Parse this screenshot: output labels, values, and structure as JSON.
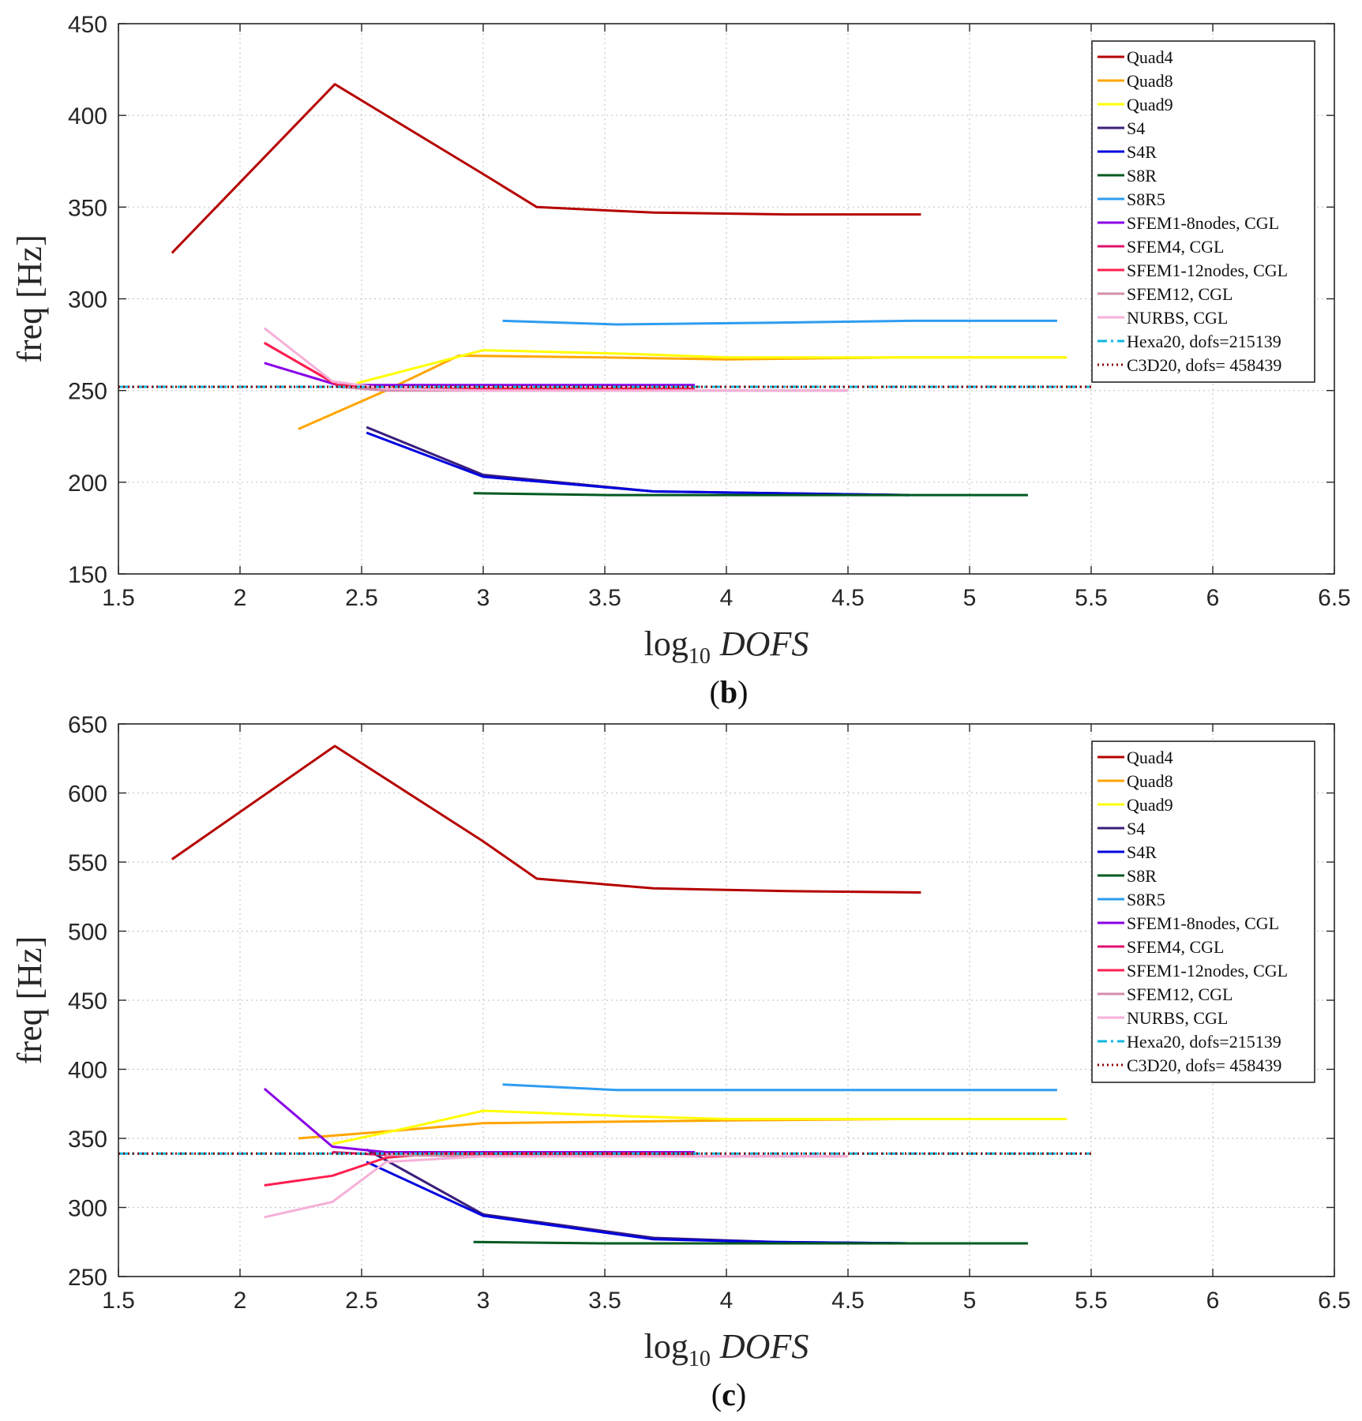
{
  "chart_data": [
    {
      "type": "line",
      "caption": "b",
      "xlabel": "log10 DOFS",
      "ylabel": "freq [Hz]",
      "xlim": [
        1.5,
        6.5
      ],
      "ylim": [
        150,
        450
      ],
      "xticks": [
        1.5,
        2,
        2.5,
        3,
        3.5,
        4,
        4.5,
        5,
        5.5,
        6,
        6.5
      ],
      "yticks": [
        150,
        200,
        250,
        300,
        350,
        400,
        450
      ],
      "xtick_labels": [
        "1.5",
        "2",
        "2.5",
        "3",
        "3.5",
        "4",
        "4.5",
        "5",
        "5.5",
        "6",
        "6.5"
      ],
      "ytick_labels": [
        "150",
        "200",
        "250",
        "300",
        "350",
        "400",
        "450"
      ],
      "grid": true,
      "legend_position": "top-right",
      "series": [
        {
          "name": "Quad4",
          "color": "#b50000",
          "dash": "solid",
          "x": [
            1.72,
            2.39,
            3.0,
            3.22,
            3.7,
            4.25,
            4.8
          ],
          "y": [
            325,
            417,
            368,
            350,
            347,
            346,
            346
          ]
        },
        {
          "name": "Quad8",
          "color": "#ffa500",
          "dash": "solid",
          "x": [
            2.24,
            2.6,
            2.9,
            3.5,
            4.0,
            4.7,
            5.4
          ],
          "y": [
            229,
            250,
            269,
            268,
            267,
            268,
            268
          ]
        },
        {
          "name": "Quad9",
          "color": "#ffff00",
          "dash": "solid",
          "x": [
            2.48,
            2.8,
            3.0,
            3.6,
            4.0,
            4.8,
            5.4
          ],
          "y": [
            254,
            265,
            272,
            270,
            268,
            268,
            268
          ]
        },
        {
          "name": "S4",
          "color": "#3a1e7a",
          "dash": "solid",
          "x": [
            2.52,
            3.0,
            3.7,
            4.2,
            4.75
          ],
          "y": [
            230,
            204,
            195,
            194,
            193
          ]
        },
        {
          "name": "S4R",
          "color": "#0000e0",
          "dash": "solid",
          "x": [
            2.52,
            3.0,
            3.7,
            4.2,
            4.75
          ],
          "y": [
            227,
            203,
            195,
            194,
            193
          ]
        },
        {
          "name": "S8R",
          "color": "#005a20",
          "dash": "solid",
          "x": [
            2.96,
            3.5,
            4.1,
            4.7,
            5.24
          ],
          "y": [
            194,
            193,
            193,
            193,
            193
          ]
        },
        {
          "name": "S8R5",
          "color": "#2e9cf0",
          "dash": "solid",
          "x": [
            3.08,
            3.55,
            4.2,
            4.75,
            5.36
          ],
          "y": [
            288,
            286,
            287,
            288,
            288
          ]
        },
        {
          "name": "SFEM1-8nodes, CGL",
          "color": "#8a00e6",
          "dash": "solid",
          "x": [
            2.1,
            2.4,
            2.55,
            3.0,
            3.87
          ],
          "y": [
            265,
            253,
            253,
            253,
            253
          ]
        },
        {
          "name": "SFEM4, CGL",
          "color": "#e0106e",
          "dash": "solid",
          "x": [
            2.1,
            2.4,
            2.6,
            3.0,
            3.5,
            3.87
          ],
          "y": [
            276,
            253,
            251,
            251,
            251,
            251
          ]
        },
        {
          "name": "SFEM1-12nodes, CGL",
          "color": "#ff1f4f",
          "dash": "solid",
          "x": [
            2.1,
            2.4,
            2.6,
            3.0,
            3.87
          ],
          "y": [
            276,
            253,
            251,
            251,
            251
          ]
        },
        {
          "name": "SFEM12, CGL",
          "color": "#d58cab",
          "dash": "solid",
          "x": [
            2.4,
            2.6,
            3.0,
            3.5,
            4.5
          ],
          "y": [
            252,
            250,
            250,
            250,
            250
          ]
        },
        {
          "name": "NURBS, CGL",
          "color": "#f5b0d8",
          "dash": "solid",
          "x": [
            2.1,
            2.38,
            2.6,
            3.0,
            3.5,
            4.5
          ],
          "y": [
            284,
            255,
            251,
            250,
            250,
            250
          ]
        },
        {
          "name": "Hexa20, dofs=215139",
          "color": "#12b6e0",
          "dash": "dashdot",
          "x": [
            1.5,
            5.5
          ],
          "y": [
            252,
            252
          ]
        },
        {
          "name": "C3D20, dofs= 458439",
          "color": "#8b0000",
          "dash": "dotted",
          "x": [
            1.5,
            5.5
          ],
          "y": [
            252,
            252
          ]
        }
      ]
    },
    {
      "type": "line",
      "caption": "c",
      "xlabel": "log10 DOFS",
      "ylabel": "freq [Hz]",
      "xlim": [
        1.5,
        6.5
      ],
      "ylim": [
        250,
        650
      ],
      "xticks": [
        1.5,
        2,
        2.5,
        3,
        3.5,
        4,
        4.5,
        5,
        5.5,
        6,
        6.5
      ],
      "yticks": [
        250,
        300,
        350,
        400,
        450,
        500,
        550,
        600,
        650
      ],
      "xtick_labels": [
        "1.5",
        "2",
        "2.5",
        "3",
        "3.5",
        "4",
        "4.5",
        "5",
        "5.5",
        "6",
        "6.5"
      ],
      "ytick_labels": [
        "250",
        "300",
        "350",
        "400",
        "450",
        "500",
        "550",
        "600",
        "650"
      ],
      "grid": true,
      "legend_position": "top-right",
      "series": [
        {
          "name": "Quad4",
          "color": "#b50000",
          "dash": "solid",
          "x": [
            1.72,
            2.39,
            3.0,
            3.22,
            3.7,
            4.25,
            4.8
          ],
          "y": [
            552,
            634,
            565,
            538,
            531,
            529,
            528
          ]
        },
        {
          "name": "Quad8",
          "color": "#ffa500",
          "dash": "solid",
          "x": [
            2.24,
            2.6,
            3.0,
            3.5,
            4.0,
            4.7,
            5.4
          ],
          "y": [
            350,
            355,
            361,
            362,
            363,
            364,
            364
          ]
        },
        {
          "name": "Quad9",
          "color": "#ffff00",
          "dash": "solid",
          "x": [
            2.38,
            2.7,
            3.0,
            3.6,
            4.0,
            4.8,
            5.4
          ],
          "y": [
            346,
            358,
            370,
            366,
            364,
            364,
            364
          ]
        },
        {
          "name": "S4",
          "color": "#3a1e7a",
          "dash": "solid",
          "x": [
            2.52,
            3.0,
            3.7,
            4.2,
            4.75
          ],
          "y": [
            342,
            295,
            278,
            275,
            274
          ]
        },
        {
          "name": "S4R",
          "color": "#0000e0",
          "dash": "solid",
          "x": [
            2.52,
            3.0,
            3.7,
            4.2,
            4.75
          ],
          "y": [
            333,
            294,
            277,
            275,
            274
          ]
        },
        {
          "name": "S8R",
          "color": "#005a20",
          "dash": "solid",
          "x": [
            2.96,
            3.5,
            4.1,
            4.7,
            5.24
          ],
          "y": [
            275,
            274,
            274,
            274,
            274
          ]
        },
        {
          "name": "S8R5",
          "color": "#2e9cf0",
          "dash": "solid",
          "x": [
            3.08,
            3.55,
            4.2,
            4.75,
            5.36
          ],
          "y": [
            389,
            385,
            385,
            385,
            385
          ]
        },
        {
          "name": "SFEM1-8nodes, CGL",
          "color": "#8a00e6",
          "dash": "solid",
          "x": [
            2.1,
            2.38,
            2.6,
            3.0,
            3.87
          ],
          "y": [
            386,
            344,
            340,
            340,
            340
          ]
        },
        {
          "name": "SFEM4, CGL",
          "color": "#e0106e",
          "dash": "solid",
          "x": [
            2.38,
            2.6,
            3.0,
            3.5,
            3.87
          ],
          "y": [
            340,
            338,
            338,
            338,
            338
          ]
        },
        {
          "name": "SFEM1-12nodes, CGL",
          "color": "#ff1f4f",
          "dash": "solid",
          "x": [
            2.1,
            2.38,
            2.6,
            2.8,
            3.0,
            3.87
          ],
          "y": [
            316,
            323,
            336,
            339,
            339,
            339
          ]
        },
        {
          "name": "SFEM12, CGL",
          "color": "#d58cab",
          "dash": "solid",
          "x": [
            2.6,
            3.0,
            3.5,
            4.5
          ],
          "y": [
            338,
            337,
            337,
            337
          ]
        },
        {
          "name": "NURBS, CGL",
          "color": "#f5b0d8",
          "dash": "solid",
          "x": [
            2.1,
            2.38,
            2.6,
            3.0,
            3.5,
            4.5
          ],
          "y": [
            293,
            304,
            333,
            337,
            337,
            337
          ]
        },
        {
          "name": "Hexa20, dofs=215139",
          "color": "#12b6e0",
          "dash": "dashdot",
          "x": [
            1.5,
            5.5
          ],
          "y": [
            339,
            339
          ]
        },
        {
          "name": "C3D20, dofs= 458439",
          "color": "#8b0000",
          "dash": "dotted",
          "x": [
            1.5,
            5.5
          ],
          "y": [
            339,
            339
          ]
        }
      ]
    }
  ]
}
